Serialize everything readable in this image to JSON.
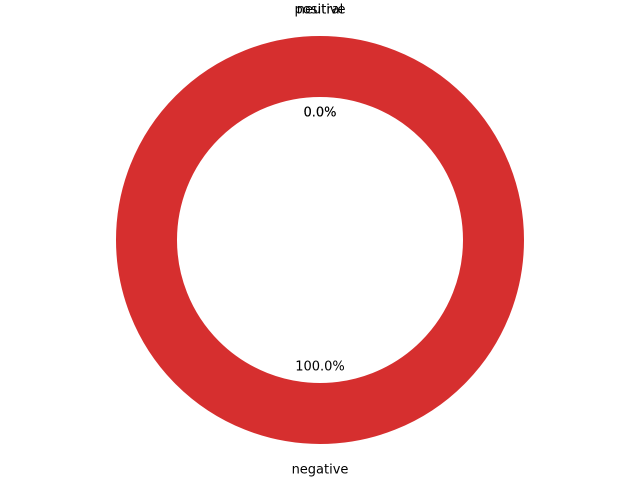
{
  "chart_data": {
    "type": "pie",
    "donut": true,
    "start_angle_deg": 90,
    "counterclockwise": true,
    "slices": [
      {
        "label": "positive",
        "value": 0,
        "percent_label": "0.0%",
        "color": "#1f77b4"
      },
      {
        "label": "neutral",
        "value": 0,
        "percent_label": "0.0%",
        "color": "#ff7f0e"
      },
      {
        "label": "negative",
        "value": 100,
        "percent_label": "100.0%",
        "color": "#d62f2f"
      }
    ]
  }
}
